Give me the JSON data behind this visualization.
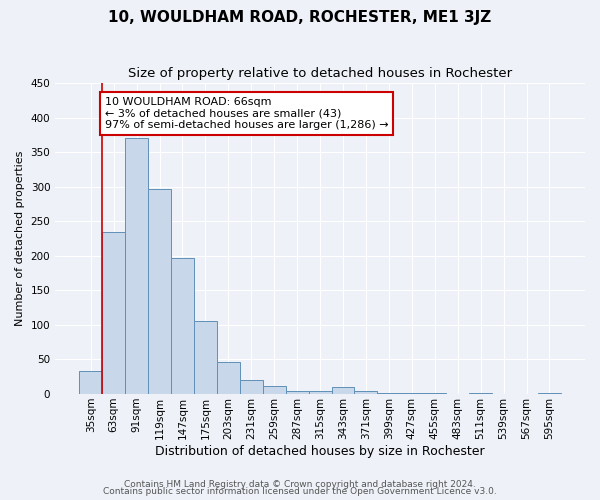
{
  "title": "10, WOULDHAM ROAD, ROCHESTER, ME1 3JZ",
  "subtitle": "Size of property relative to detached houses in Rochester",
  "xlabel": "Distribution of detached houses by size in Rochester",
  "ylabel": "Number of detached properties",
  "categories": [
    "35sqm",
    "63sqm",
    "91sqm",
    "119sqm",
    "147sqm",
    "175sqm",
    "203sqm",
    "231sqm",
    "259sqm",
    "287sqm",
    "315sqm",
    "343sqm",
    "371sqm",
    "399sqm",
    "427sqm",
    "455sqm",
    "483sqm",
    "511sqm",
    "539sqm",
    "567sqm",
    "595sqm"
  ],
  "values": [
    33,
    234,
    370,
    297,
    197,
    105,
    46,
    20,
    12,
    5,
    5,
    10,
    5,
    2,
    1,
    2,
    0,
    1,
    0,
    0,
    2
  ],
  "bar_color": "#c8d8ea",
  "bar_edge_color": "#6090b8",
  "annotation_line1": "10 WOULDHAM ROAD: 66sqm",
  "annotation_line2": "← 3% of detached houses are smaller (43)",
  "annotation_line3": "97% of semi-detached houses are larger (1,286) →",
  "annotation_box_color": "#ffffff",
  "annotation_box_edge_color": "#cc0000",
  "vline_x": 0.5,
  "vline_color": "#cc0000",
  "ylim": [
    0,
    450
  ],
  "yticks": [
    0,
    50,
    100,
    150,
    200,
    250,
    300,
    350,
    400,
    450
  ],
  "background_color": "#eef2f8",
  "plot_bg_color": "#eef2f8",
  "footer_line1": "Contains HM Land Registry data © Crown copyright and database right 2024.",
  "footer_line2": "Contains public sector information licensed under the Open Government Licence v3.0.",
  "title_fontsize": 11,
  "subtitle_fontsize": 9.5,
  "xlabel_fontsize": 9,
  "ylabel_fontsize": 8,
  "tick_fontsize": 7.5,
  "annotation_fontsize": 8,
  "footer_fontsize": 6.5
}
